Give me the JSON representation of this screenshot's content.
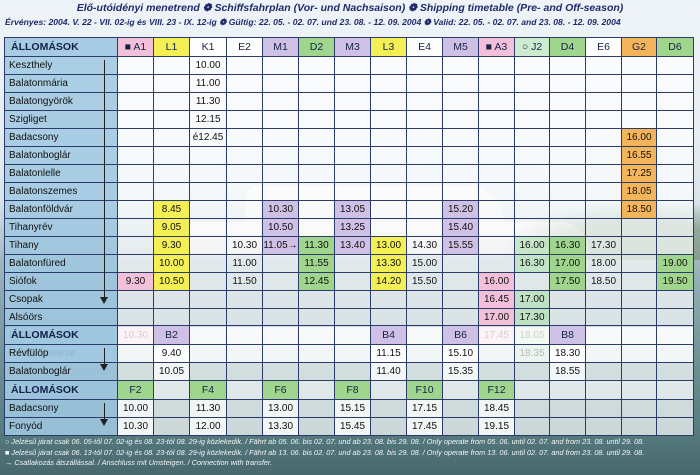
{
  "header": {
    "title": "Elő-utóidényi menetrend ❁ Schiffsfahrplan (Vor- und Nachsaison) ❁ Shipping timetable (Pre- and Off-season)",
    "validity": "Érvényes: 2004. V. 22 - VII. 02-ig és VIII. 23 - IX. 12-ig ❁ Gültig: 22. 05. - 02. 07. und 23. 08. - 12. 09. 2004 ❁ Valid: 22. 05. - 02. 07. and 23. 08. - 12. 09. 2004"
  },
  "main": {
    "header": "ÁLLOMÁSOK",
    "columns": [
      "■ A1",
      "L1",
      "K1",
      "E2",
      "M1",
      "D2",
      "M3",
      "L3",
      "E4",
      "M5",
      "■ A3",
      "○ J2",
      "D4",
      "E6",
      "G2",
      "D6"
    ],
    "column_colors": [
      "p",
      "y",
      "w",
      "w",
      "l",
      "g",
      "l",
      "y",
      "w",
      "l",
      "p",
      "gl",
      "g",
      "w",
      "o",
      "g"
    ],
    "rows": [
      {
        "station": "Keszthely",
        "times": [
          "",
          "",
          "10.00",
          "",
          "",
          "",
          "",
          "",
          "",
          "",
          "",
          "",
          "",
          "",
          "",
          ""
        ]
      },
      {
        "station": "Balatonmária",
        "times": [
          "",
          "",
          "11.00",
          "",
          "",
          "",
          "",
          "",
          "",
          "",
          "",
          "",
          "",
          "",
          "",
          ""
        ]
      },
      {
        "station": "Balatongyörök",
        "times": [
          "",
          "",
          "11.30",
          "",
          "",
          "",
          "",
          "",
          "",
          "",
          "",
          "",
          "",
          "",
          "",
          ""
        ]
      },
      {
        "station": "Szigliget",
        "times": [
          "",
          "",
          "12.15",
          "",
          "",
          "",
          "",
          "",
          "",
          "",
          "",
          "",
          "",
          "",
          "",
          ""
        ]
      },
      {
        "station": "Badacsony",
        "times": [
          "",
          "",
          "é12.45",
          "",
          "",
          "",
          "",
          "",
          "",
          "",
          "",
          "",
          "",
          "",
          "16.00",
          ""
        ]
      },
      {
        "station": "Balatonboglár",
        "times": [
          "",
          "",
          "",
          "",
          "",
          "",
          "",
          "",
          "",
          "",
          "",
          "",
          "",
          "",
          "16.55",
          ""
        ]
      },
      {
        "station": "Balatonlelle",
        "times": [
          "",
          "",
          "",
          "",
          "",
          "",
          "",
          "",
          "",
          "",
          "",
          "",
          "",
          "",
          "17.25",
          ""
        ]
      },
      {
        "station": "Balatonszemes",
        "times": [
          "",
          "",
          "",
          "",
          "",
          "",
          "",
          "",
          "",
          "",
          "",
          "",
          "",
          "",
          "18.05",
          ""
        ]
      },
      {
        "station": "Balatonföldvár",
        "times": [
          "",
          "8.45",
          "",
          "",
          "10.30",
          "",
          "13.05",
          "",
          "",
          "15.20",
          "",
          "",
          "",
          "",
          "18.50",
          ""
        ]
      },
      {
        "station": "Tihanyrév",
        "times": [
          "",
          "9.05",
          "",
          "",
          "10.50",
          "",
          "13.25",
          "",
          "",
          "15.40",
          "",
          "",
          "",
          "",
          "",
          ""
        ]
      },
      {
        "station": "Tihany",
        "times": [
          "",
          "9.30",
          "",
          "10.30",
          "11.05→",
          "11.30",
          "13.40",
          "13.00",
          "14.30",
          "15.55",
          "",
          "16.00",
          "16.30",
          "17.30",
          "",
          ""
        ]
      },
      {
        "station": "Balatonfüred",
        "times": [
          "",
          "10.00",
          "",
          "11.00",
          "",
          "11.55",
          "",
          "13.30",
          "15.00",
          "",
          "",
          "16.30",
          "17.00",
          "18.00",
          "",
          "19.00"
        ]
      },
      {
        "station": "Siófok",
        "times": [
          "9.30",
          "10.50",
          "",
          "11.50",
          "",
          "12.45",
          "",
          "14.20",
          "15.50",
          "",
          "16.00",
          "",
          "17.50",
          "18.50",
          "",
          "19.50"
        ]
      },
      {
        "station": "Csopak",
        "times": [
          "",
          "",
          "",
          "",
          "",
          "",
          "",
          "",
          "",
          "",
          "16.45",
          "17.00",
          "",
          "",
          "",
          ""
        ]
      },
      {
        "station": "Alsóörs",
        "times": [
          "",
          "",
          "",
          "",
          "",
          "",
          "",
          "",
          "",
          "",
          "17.00",
          "17.30",
          "",
          "",
          "",
          ""
        ]
      },
      {
        "station": "Balatonalmádi",
        "times": [
          "10.30",
          "",
          "",
          "",
          "",
          "",
          "",
          "",
          "",
          "",
          "17.45",
          "18.05",
          "",
          "",
          "",
          ""
        ]
      },
      {
        "station": "Balatonkenese",
        "times": [
          "",
          "",
          "",
          "",
          "",
          "",
          "",
          "",
          "",
          "",
          "",
          "18.35",
          "",
          "",
          "",
          ""
        ]
      }
    ]
  },
  "route_b": {
    "header": "ÁLLOMÁSOK",
    "columns": [
      "",
      "B2",
      "",
      "",
      "",
      "",
      "",
      "B4",
      "",
      "B6",
      "",
      "",
      "B8",
      "",
      "",
      ""
    ],
    "rows": [
      {
        "station": "Révfülöp",
        "times": [
          "",
          "9.40",
          "",
          "",
          "",
          "",
          "",
          "11.15",
          "",
          "15.10",
          "",
          "",
          "18.30",
          "",
          "",
          ""
        ]
      },
      {
        "station": "Balatonboglár",
        "times": [
          "",
          "10.05",
          "",
          "",
          "",
          "",
          "",
          "11.40",
          "",
          "15.35",
          "",
          "",
          "18.55",
          "",
          "",
          ""
        ]
      }
    ]
  },
  "route_f": {
    "header": "ÁLLOMÁSOK",
    "columns": [
      "F2",
      "",
      "F4",
      "",
      "F6",
      "",
      "F8",
      "",
      "F10",
      "",
      "F12",
      "",
      "",
      "",
      "",
      ""
    ],
    "rows": [
      {
        "station": "Badacsony",
        "times": [
          "10.00",
          "",
          "11.30",
          "",
          "13.00",
          "",
          "15.15",
          "",
          "17.15",
          "",
          "18.45",
          "",
          "",
          "",
          "",
          ""
        ]
      },
      {
        "station": "Fonyód",
        "times": [
          "10.30",
          "",
          "12.00",
          "",
          "13.30",
          "",
          "15.45",
          "",
          "17.45",
          "",
          "19.15",
          "",
          "",
          "",
          "",
          ""
        ]
      }
    ]
  },
  "notes": [
    "○ Jelzésű járat csak 06. 05-től 07. 02-ig és 08. 23-tól 08. 29-ig közlekedik. / Fährt ab 05. 06. bis 02. 07. und ab 23. 08. bis 29. 08. / Only operate from 05. 06. until 02. 07. and from 23. 08. until 29. 08.",
    "■ Jelzésű járat csak 06. 13-tól 07. 02-ig és 08. 23-tól 08. 29-ig közlekedik. / Fährt ab 13. 06. bis 02. 07. und ab 23. 08. bis 29. 08. / Only operate from 13. 06. until 02. 07. and from 23. 08. until 29. 08.",
    "→ Csatlakozás átszállással. / Anschluss mit Umsteigen. / Connection with transfer."
  ]
}
